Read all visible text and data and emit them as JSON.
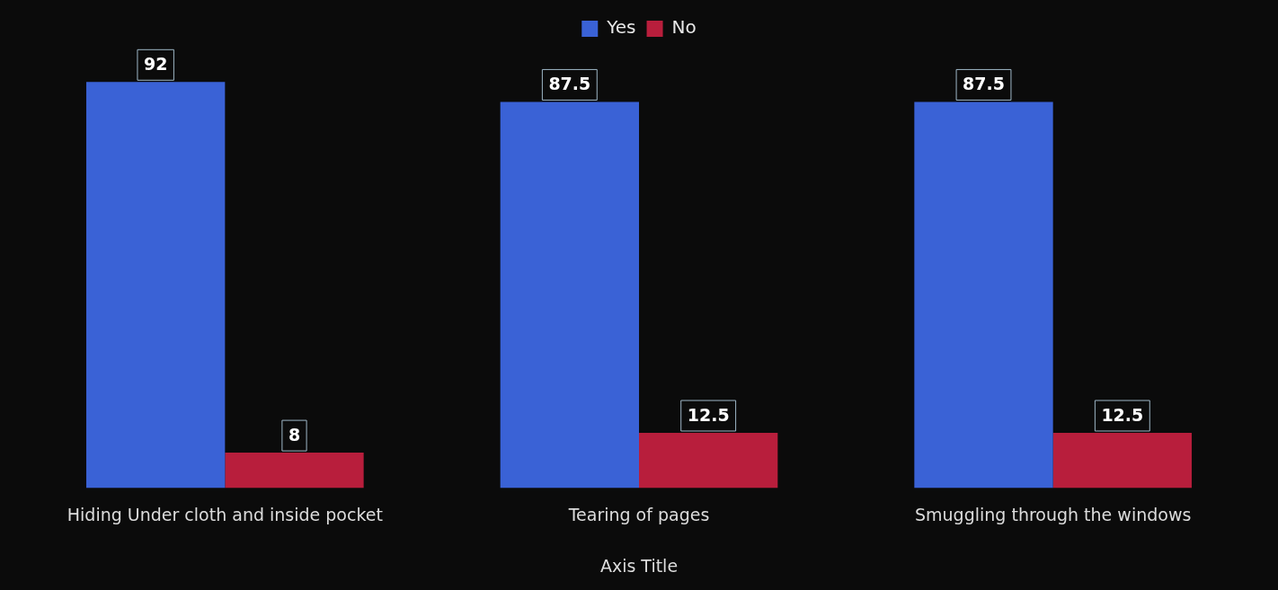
{
  "chart_data": {
    "type": "bar",
    "xlabel": "Axis Title",
    "categories": [
      "Hiding Under cloth and inside pocket",
      "Tearing of pages",
      "Smuggling through the windows"
    ],
    "series": [
      {
        "name": "Yes",
        "color": "#3a62d6",
        "values": [
          92,
          87.5,
          87.5
        ]
      },
      {
        "name": "No",
        "color": "#b81e3c",
        "values": [
          8,
          12.5,
          12.5
        ]
      }
    ],
    "data_labels": true,
    "legend": "top",
    "tick_labels": "x",
    "grid": false
  }
}
